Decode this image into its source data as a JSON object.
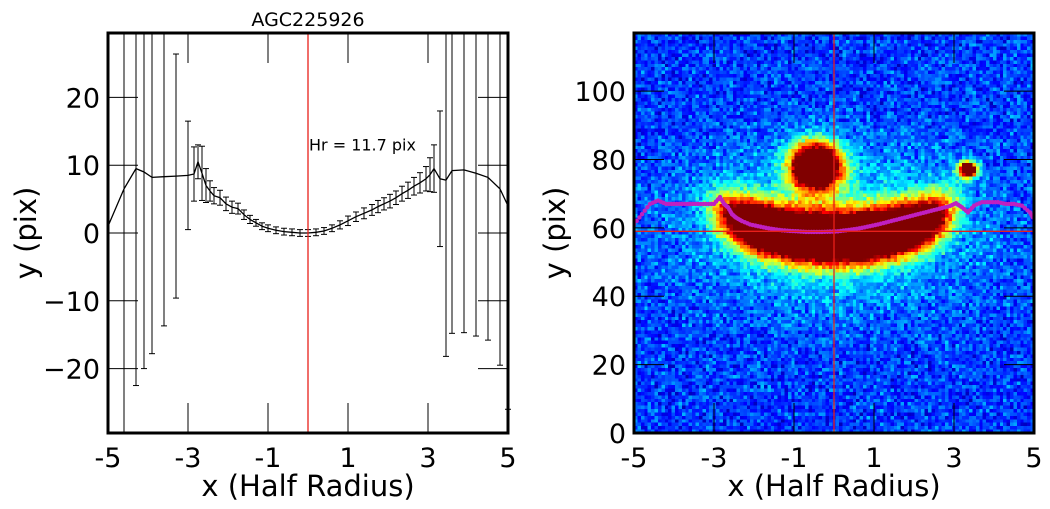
{
  "chart_data": [
    {
      "type": "line",
      "title": "AGC225926",
      "xlabel": "x (Half Radius)",
      "ylabel": "y (pix)",
      "xlim": [
        -5,
        5
      ],
      "ylim": [
        -29.5,
        29.5
      ],
      "xticks": [
        -5,
        -3,
        -1,
        1,
        3,
        5
      ],
      "xtick_labels": [
        "-5",
        "-3",
        "-1",
        "1",
        "3",
        "5"
      ],
      "yticks": [
        -20,
        -10,
        0,
        10,
        20
      ],
      "ytick_labels": [
        "−20",
        "−10",
        "0",
        "10",
        "20"
      ],
      "grid": false,
      "vline": {
        "x": 0,
        "color": "#e8201a"
      },
      "annotation": "Hr = 11.7 pix",
      "series": [
        {
          "color": "#000000",
          "x": [
            -5.0,
            -4.6,
            -4.3,
            -4.1,
            -3.9,
            -3.6,
            -3.3,
            -3.0,
            -2.85,
            -2.75,
            -2.65,
            -2.55,
            -2.45,
            -2.35,
            -2.2,
            -2.05,
            -1.9,
            -1.75,
            -1.6,
            -1.45,
            -1.3,
            -1.15,
            -1.0,
            -0.8,
            -0.6,
            -0.4,
            -0.2,
            0.0,
            0.2,
            0.4,
            0.6,
            0.8,
            1.0,
            1.2,
            1.4,
            1.6,
            1.75,
            1.9,
            2.05,
            2.2,
            2.35,
            2.5,
            2.65,
            2.8,
            2.95,
            3.05,
            3.15,
            3.3,
            3.45,
            3.6,
            3.9,
            4.2,
            4.5,
            4.8,
            5.0
          ],
          "y": [
            1.0,
            6.5,
            9.5,
            9.0,
            8.2,
            8.3,
            8.4,
            8.5,
            8.7,
            10.5,
            8.8,
            7.0,
            6.2,
            5.5,
            5.2,
            4.3,
            3.8,
            3.6,
            2.7,
            2.0,
            1.5,
            1.0,
            0.7,
            0.4,
            0.2,
            0.1,
            0.0,
            0.0,
            0.1,
            0.3,
            0.7,
            1.2,
            1.8,
            2.4,
            2.9,
            3.4,
            3.9,
            4.3,
            4.7,
            5.2,
            5.8,
            6.3,
            6.9,
            7.4,
            8.0,
            8.6,
            9.5,
            8.0,
            7.8,
            9.2,
            9.3,
            8.8,
            8.2,
            6.5,
            4.0
          ],
          "yerr": [
            40,
            36,
            32,
            29,
            26,
            22,
            18,
            8,
            4,
            2.5,
            4,
            2.5,
            1.5,
            1.2,
            1.1,
            1.0,
            0.9,
            0.8,
            0.7,
            0.6,
            0.5,
            0.5,
            0.5,
            0.5,
            0.5,
            0.5,
            0.5,
            0.5,
            0.5,
            0.5,
            0.5,
            0.6,
            0.7,
            0.7,
            0.8,
            0.8,
            0.9,
            0.9,
            1.0,
            1.0,
            1.1,
            1.2,
            1.3,
            1.5,
            1.8,
            2.5,
            3.5,
            10,
            26,
            24,
            24,
            24,
            24,
            26,
            30
          ]
        }
      ]
    },
    {
      "type": "heatmap",
      "xlabel": "x (Half Radius)",
      "ylabel": "y (pix)",
      "xlim": [
        -5,
        5
      ],
      "ylim": [
        0,
        117
      ],
      "xticks": [
        -5,
        -3,
        -1,
        1,
        3,
        5
      ],
      "xtick_labels": [
        "-5",
        "-3",
        "-1",
        "1",
        "3",
        "5"
      ],
      "yticks": [
        0,
        20,
        40,
        60,
        80,
        100
      ],
      "ytick_labels": [
        "0",
        "20",
        "40",
        "60",
        "80",
        "100"
      ],
      "colormap": "jet",
      "vline": {
        "x": 0,
        "color": "#e8201a"
      },
      "hline": {
        "y": 59,
        "color": "#e8201a"
      },
      "overlay_series": {
        "color": "#c020c0",
        "x": [
          -5.0,
          -4.8,
          -4.6,
          -4.4,
          -4.2,
          -4.0,
          -3.8,
          -3.6,
          -3.4,
          -3.2,
          -3.0,
          -2.85,
          -2.75,
          -2.65,
          -2.55,
          -2.45,
          -2.3,
          -2.1,
          -1.9,
          -1.7,
          -1.5,
          -1.3,
          -1.1,
          -0.9,
          -0.7,
          -0.5,
          -0.3,
          -0.1,
          0.1,
          0.3,
          0.5,
          0.7,
          0.9,
          1.1,
          1.3,
          1.5,
          1.7,
          1.9,
          2.1,
          2.3,
          2.5,
          2.7,
          2.9,
          3.05,
          3.2,
          3.35,
          3.5,
          3.7,
          3.9,
          4.1,
          4.3,
          4.5,
          4.7,
          4.9,
          5.0
        ],
        "y": [
          61,
          64,
          67,
          68,
          67,
          67,
          67,
          67,
          67,
          67,
          67,
          69,
          67,
          66,
          64,
          63,
          62,
          61,
          60.5,
          60,
          59.6,
          59.3,
          59.1,
          59.0,
          58.8,
          58.8,
          58.8,
          58.9,
          59.0,
          59.3,
          59.6,
          60.0,
          60.5,
          61.0,
          61.6,
          62.2,
          62.8,
          63.4,
          64.0,
          64.6,
          65.2,
          65.8,
          66.4,
          67.2,
          66.0,
          64.5,
          66.5,
          67.5,
          67.5,
          67.5,
          67.0,
          67.0,
          66.5,
          64.5,
          62.5
        ]
      }
    }
  ]
}
